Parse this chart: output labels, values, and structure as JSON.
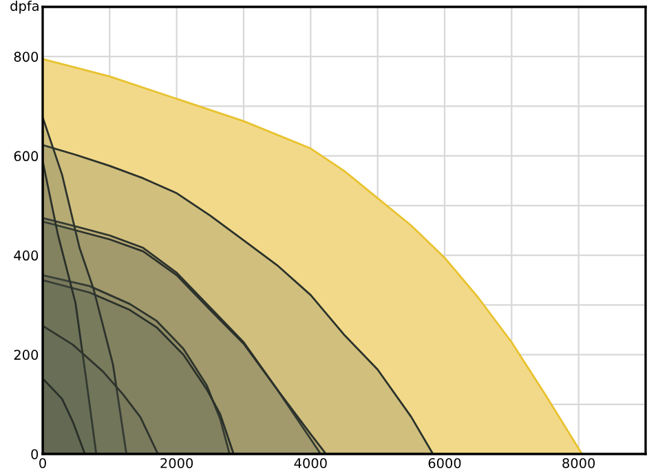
{
  "chart_data": {
    "type": "area",
    "ylabel": "dpfa",
    "xlim": [
      0,
      9000
    ],
    "ylim": [
      0,
      900
    ],
    "xticks": [
      0,
      {
        "value": 1000,
        "label": null
      },
      2000,
      {
        "value": 3000,
        "label": null
      },
      4000,
      {
        "value": 5000,
        "label": null
      },
      6000,
      {
        "value": 7000,
        "label": null
      },
      8000,
      {
        "value": 9000,
        "label": null
      }
    ],
    "yticks": [
      0,
      {
        "value": 100,
        "label": null
      },
      200,
      {
        "value": 300,
        "label": null
      },
      400,
      {
        "value": 500,
        "label": null
      },
      600,
      {
        "value": 700,
        "label": null
      },
      800,
      {
        "value": 900,
        "label": null
      }
    ],
    "grid": true,
    "legend": false,
    "series": [
      {
        "color": "#f2d98a",
        "x": [
          0,
          1000,
          2000,
          3000,
          4000,
          4500,
          5000,
          5500,
          6000,
          6500,
          7000,
          7500,
          8050
        ],
        "values": [
          795,
          760,
          715,
          670,
          615,
          570,
          515,
          460,
          395,
          315,
          225,
          120,
          0
        ]
      },
      {
        "color": "#4f5a4e",
        "x": [
          0,
          500,
          1000,
          1500,
          2000,
          2500,
          3000,
          3500,
          4000,
          4500,
          5000,
          5500,
          5826
        ],
        "values": [
          622,
          602,
          580,
          555,
          525,
          480,
          430,
          380,
          320,
          240,
          170,
          75,
          0
        ]
      },
      {
        "color": "#505b4f",
        "x": [
          0,
          500,
          1000,
          1500,
          2000,
          2500,
          3000,
          3500,
          4000,
          4150
        ],
        "values": [
          475,
          458,
          440,
          415,
          365,
          295,
          225,
          130,
          30,
          0
        ]
      },
      {
        "color": "#4e594e",
        "x": [
          0,
          500,
          1000,
          1500,
          2000,
          2500,
          3000,
          3500,
          4000,
          4230
        ],
        "values": [
          468,
          450,
          432,
          408,
          360,
          290,
          222,
          130,
          40,
          0
        ]
      },
      {
        "color": "#515c50",
        "x": [
          0,
          700,
          1300,
          1700,
          2100,
          2450,
          2650,
          2790
        ],
        "values": [
          360,
          338,
          302,
          268,
          212,
          138,
          70,
          0
        ]
      },
      {
        "color": "#4d584d",
        "x": [
          0,
          700,
          1300,
          1700,
          2100,
          2450,
          2650,
          2850
        ],
        "values": [
          350,
          325,
          290,
          255,
          200,
          130,
          80,
          0
        ]
      },
      {
        "color": "#525d51",
        "x": [
          0,
          290,
          550,
          760,
          1050,
          1250
        ],
        "values": [
          678,
          562,
          415,
          332,
          180,
          0
        ]
      },
      {
        "color": "#4c574c",
        "x": [
          0,
          225,
          490,
          650,
          800
        ],
        "values": [
          590,
          443,
          304,
          150,
          0
        ]
      },
      {
        "color": "#535e52",
        "x": [
          0,
          450,
          900,
          1200,
          1460,
          1720
        ],
        "values": [
          258,
          220,
          166,
          120,
          74,
          0
        ]
      },
      {
        "color": "#4b564b",
        "x": [
          0,
          290,
          450,
          630
        ],
        "values": [
          152,
          111,
          65,
          0
        ]
      }
    ]
  }
}
